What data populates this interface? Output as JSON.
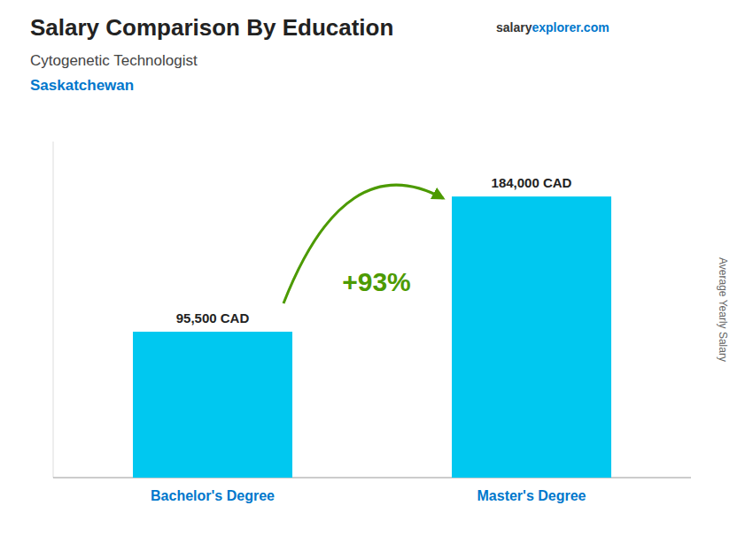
{
  "chart_data": {
    "type": "bar",
    "title": "Salary Comparison By Education",
    "subtitle": "Cytogenetic Technologist",
    "y_label": "Average Yearly Salary",
    "annotations": [
      "Saskatchewan",
      "+93%",
      "salary",
      "explorer",
      ".com"
    ],
    "categories": [
      "Bachelor's Degree",
      "Master's Degree"
    ],
    "values": [
      95500,
      184000
    ],
    "value_labels": [
      "95,500 CAD",
      "184,000 CAD"
    ],
    "data_labels": true,
    "color": "#00c8f0",
    "ylim": [
      0,
      220000
    ],
    "tick_labels": "x",
    "grid": false
  }
}
